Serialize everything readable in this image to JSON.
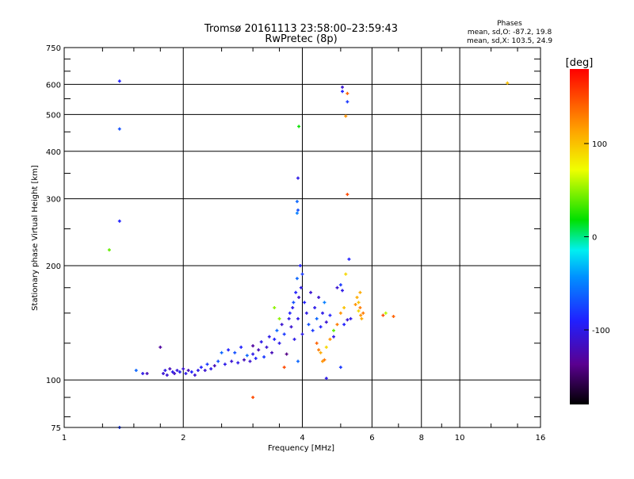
{
  "chart_data": {
    "type": "scatter",
    "title": "Tromsø 20161113 23:58:00–23:59:43",
    "subtitle": "RwPretec (8p)",
    "xlabel": "Frequency [MHz]",
    "ylabel": "Stationary phase Virtual Height [km]",
    "xscale": "log",
    "yscale": "log",
    "xlim": [
      1,
      16
    ],
    "ylim": [
      75,
      750
    ],
    "xticks": [
      {
        "v": 1,
        "label": "1"
      },
      {
        "v": 2,
        "label": "2"
      },
      {
        "v": 4,
        "label": "4"
      },
      {
        "v": 6,
        "label": "6"
      },
      {
        "v": 8,
        "label": "8"
      },
      {
        "v": 10,
        "label": "10"
      },
      {
        "v": 16,
        "label": "16"
      }
    ],
    "yticks": [
      {
        "v": 75,
        "label": "75"
      },
      {
        "v": 100,
        "label": "100"
      },
      {
        "v": 200,
        "label": "200"
      },
      {
        "v": 300,
        "label": "300"
      },
      {
        "v": 400,
        "label": "400"
      },
      {
        "v": 500,
        "label": "500"
      },
      {
        "v": 600,
        "label": "600"
      },
      {
        "v": 750,
        "label": "750"
      }
    ],
    "grid": true,
    "legend": {
      "title": "Phases",
      "line_o": "mean, sd,O: -87.2, 19.8",
      "line_x": "mean, sd,X: 103.5, 24.9"
    },
    "colorbar": {
      "label": "[deg]",
      "range": [
        -180,
        180
      ],
      "ticks": [
        {
          "v": 100,
          "label": "100"
        },
        {
          "v": 0,
          "label": "0"
        },
        {
          "v": -100,
          "label": "-100"
        }
      ]
    },
    "point_format": [
      "freq_MHz",
      "height_km",
      "phase_deg"
    ],
    "points": [
      [
        1.38,
        612,
        -90
      ],
      [
        1.38,
        458,
        -70
      ],
      [
        1.38,
        262,
        -90
      ],
      [
        1.3,
        220,
        40
      ],
      [
        1.38,
        75,
        -80
      ],
      [
        1.75,
        122,
        -130
      ],
      [
        1.52,
        106,
        -60
      ],
      [
        1.58,
        104,
        -100
      ],
      [
        1.62,
        104,
        -120
      ],
      [
        1.78,
        104,
        -110
      ],
      [
        1.8,
        106,
        -100
      ],
      [
        1.82,
        103,
        -110
      ],
      [
        1.85,
        107,
        -120
      ],
      [
        1.88,
        105,
        -100
      ],
      [
        1.9,
        104,
        -115
      ],
      [
        1.93,
        106,
        -105
      ],
      [
        1.96,
        105,
        -95
      ],
      [
        2.0,
        107,
        -110
      ],
      [
        2.03,
        104,
        -100
      ],
      [
        2.06,
        106,
        -120
      ],
      [
        2.1,
        105,
        -90
      ],
      [
        2.14,
        103,
        -110
      ],
      [
        2.18,
        106,
        -100
      ],
      [
        2.22,
        108,
        -90
      ],
      [
        2.27,
        106,
        -110
      ],
      [
        2.3,
        110,
        -80
      ],
      [
        2.35,
        107,
        -100
      ],
      [
        2.4,
        109,
        -120
      ],
      [
        2.45,
        112,
        -70
      ],
      [
        2.5,
        118,
        -60
      ],
      [
        2.55,
        110,
        -100
      ],
      [
        2.6,
        120,
        -90
      ],
      [
        2.65,
        112,
        -110
      ],
      [
        2.7,
        118,
        -70
      ],
      [
        2.75,
        111,
        -100
      ],
      [
        2.8,
        122,
        -90
      ],
      [
        2.85,
        113,
        -120
      ],
      [
        2.9,
        116,
        -60
      ],
      [
        2.95,
        112,
        -110
      ],
      [
        3.0,
        117,
        -100
      ],
      [
        3.0,
        123,
        -130
      ],
      [
        3.05,
        114,
        -90
      ],
      [
        3.1,
        120,
        -120
      ],
      [
        3.15,
        126,
        -100
      ],
      [
        3.2,
        115,
        -80
      ],
      [
        3.25,
        122,
        -110
      ],
      [
        3.3,
        130,
        -100
      ],
      [
        3.35,
        118,
        -120
      ],
      [
        3.4,
        128,
        -90
      ],
      [
        3.45,
        135,
        -60
      ],
      [
        3.5,
        125,
        -100
      ],
      [
        3.55,
        140,
        -110
      ],
      [
        3.6,
        132,
        -80
      ],
      [
        3.65,
        117,
        -140
      ],
      [
        3.7,
        145,
        -100
      ],
      [
        3.72,
        150,
        -90
      ],
      [
        3.75,
        138,
        -110
      ],
      [
        3.78,
        155,
        -100
      ],
      [
        3.8,
        160,
        -70
      ],
      [
        3.82,
        128,
        -100
      ],
      [
        3.85,
        170,
        -90
      ],
      [
        3.88,
        185,
        -60
      ],
      [
        3.9,
        145,
        -100
      ],
      [
        3.92,
        165,
        -110
      ],
      [
        3.95,
        200,
        -90
      ],
      [
        3.97,
        175,
        -100
      ],
      [
        4.0,
        190,
        -80
      ],
      [
        4.0,
        132,
        -100
      ],
      [
        3.9,
        112,
        -60
      ],
      [
        3.6,
        108,
        150
      ],
      [
        3.9,
        280,
        -70
      ],
      [
        3.88,
        295,
        -60
      ],
      [
        3.9,
        340,
        -100
      ],
      [
        3.92,
        465,
        20
      ],
      [
        3.88,
        275,
        -50
      ],
      [
        3.5,
        145,
        50
      ],
      [
        3.4,
        155,
        50
      ],
      [
        4.05,
        160,
        -90
      ],
      [
        4.1,
        150,
        -100
      ],
      [
        4.15,
        140,
        -70
      ],
      [
        4.2,
        170,
        -110
      ],
      [
        4.25,
        135,
        -80
      ],
      [
        4.3,
        155,
        -100
      ],
      [
        4.35,
        145,
        -60
      ],
      [
        4.4,
        165,
        -110
      ],
      [
        4.45,
        138,
        -90
      ],
      [
        4.5,
        150,
        -100
      ],
      [
        4.55,
        160,
        -50
      ],
      [
        4.6,
        142,
        -110
      ],
      [
        4.7,
        148,
        -90
      ],
      [
        4.8,
        130,
        -100
      ],
      [
        4.9,
        175,
        -110
      ],
      [
        5.0,
        178,
        -80
      ],
      [
        5.05,
        172,
        -100
      ],
      [
        5.1,
        140,
        -90
      ],
      [
        5.2,
        144,
        -110
      ],
      [
        5.3,
        145,
        -100
      ],
      [
        4.35,
        125,
        140
      ],
      [
        4.4,
        120,
        130
      ],
      [
        4.45,
        118,
        110
      ],
      [
        4.5,
        112,
        120
      ],
      [
        4.55,
        113,
        130
      ],
      [
        4.6,
        122,
        90
      ],
      [
        4.7,
        128,
        120
      ],
      [
        4.8,
        135,
        40
      ],
      [
        4.9,
        140,
        130
      ],
      [
        5.0,
        150,
        120
      ],
      [
        5.1,
        155,
        100
      ],
      [
        5.5,
        165,
        110
      ],
      [
        5.55,
        160,
        100
      ],
      [
        5.6,
        155,
        130
      ],
      [
        5.62,
        148,
        120
      ],
      [
        5.65,
        145,
        110
      ],
      [
        5.55,
        152,
        90
      ],
      [
        5.45,
        158,
        120
      ],
      [
        5.7,
        150,
        130
      ],
      [
        5.6,
        170,
        110
      ],
      [
        6.4,
        148,
        150
      ],
      [
        6.8,
        147,
        140
      ],
      [
        6.5,
        150,
        60
      ],
      [
        5.05,
        590,
        -110
      ],
      [
        5.05,
        575,
        -90
      ],
      [
        5.2,
        568,
        140
      ],
      [
        5.2,
        540,
        -80
      ],
      [
        5.15,
        495,
        120
      ],
      [
        5.2,
        308,
        150
      ],
      [
        5.25,
        208,
        -90
      ],
      [
        5.15,
        190,
        90
      ],
      [
        4.6,
        101,
        -100
      ],
      [
        5.0,
        108,
        -80
      ],
      [
        3.0,
        90,
        150
      ],
      [
        13.2,
        605,
        100
      ]
    ]
  }
}
